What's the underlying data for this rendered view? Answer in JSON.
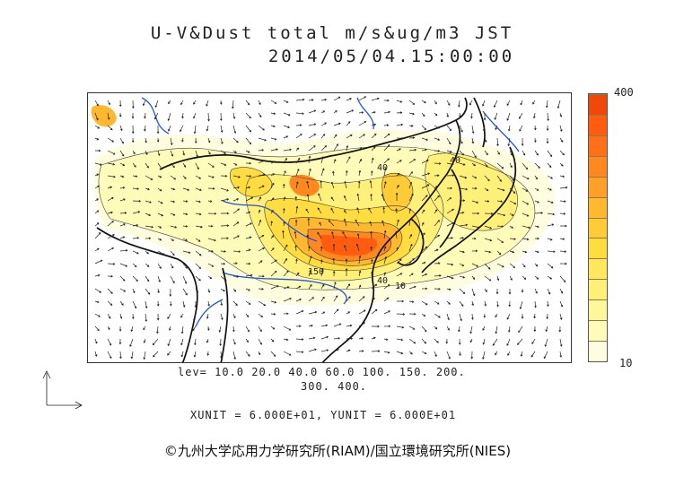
{
  "header": {
    "title_line1": "U-V&Dust total m/s&ug/m3 JST",
    "title_line2": "2014/05/04.15:00:00"
  },
  "colorbar": {
    "max_label": "400",
    "min_label": "10",
    "colors_bottom_to_top": [
      "#fffde0",
      "#fffbb8",
      "#fff79a",
      "#fff07a",
      "#ffe860",
      "#ffdc40",
      "#ffcc38",
      "#ffb830",
      "#ffa028",
      "#ff8820",
      "#ff7018",
      "#ff5c10",
      "#f04808"
    ]
  },
  "levels": {
    "line1": "lev= 10.0 20.0 40.0 60.0 100. 150. 200.",
    "line2": "300. 400."
  },
  "units": {
    "line": "XUNIT = 6.000E+01, YUNIT = 6.000E+01"
  },
  "contour_labels": [
    "40",
    "40",
    "150",
    "40",
    "10"
  ],
  "copyright": "©九州大学応用力学研究所(RIAM)/国立環境研究所(NIES)"
}
